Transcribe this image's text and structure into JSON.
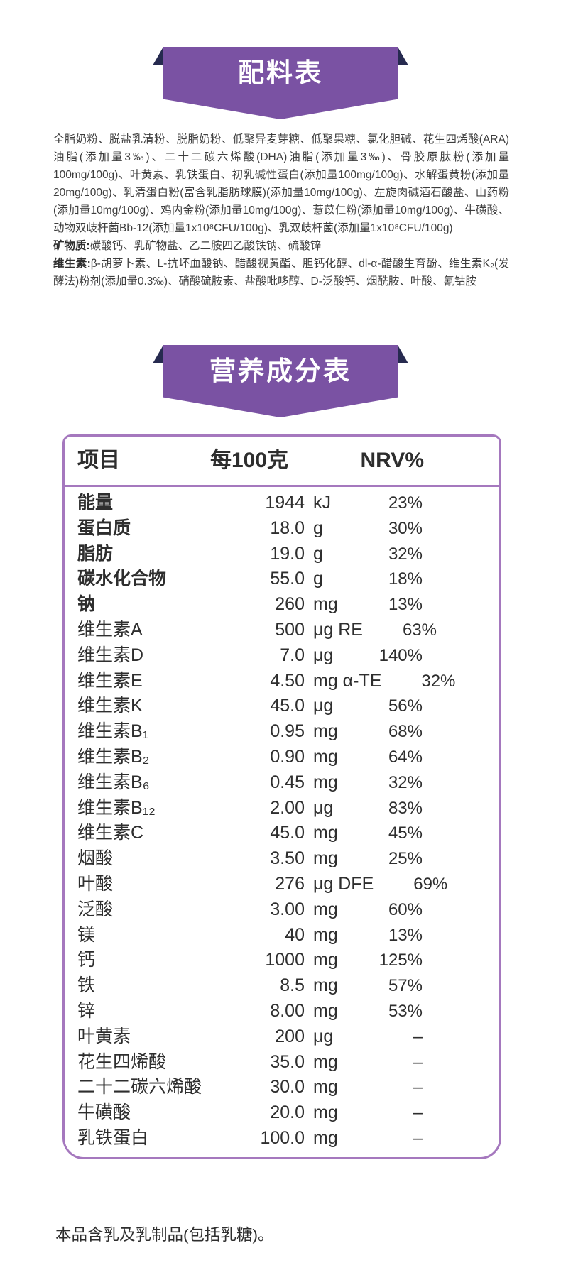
{
  "colors": {
    "banner_purple": "#7a52a3",
    "ribbon_fold_navy": "#262a4f",
    "table_border_purple": "#a578be",
    "text_dark": "#2e2e2e"
  },
  "ingredients_banner": {
    "title": "配料表"
  },
  "ingredients": {
    "main": "全脂奶粉、脱盐乳清粉、脱脂奶粉、低聚异麦芽糖、低聚果糖、氯化胆碱、花生四烯酸(ARA)油脂(添加量3‰)、二十二碳六烯酸(DHA)油脂(添加量3‰)、骨胶原肽粉(添加量100mg/100g)、叶黄素、乳铁蛋白、初乳碱性蛋白(添加量100mg/100g)、水解蛋黄粉(添加量20mg/100g)、乳清蛋白粉(富含乳脂肪球膜)(添加量10mg/100g)、左旋肉碱酒石酸盐、山药粉(添加量10mg/100g)、鸡内金粉(添加量10mg/100g)、薏苡仁粉(添加量10mg/100g)、牛磺酸、动物双歧杆菌Bb-12(添加量1x10⁸CFU/100g)、乳双歧杆菌(添加量1x10⁸CFU/100g)",
    "minerals_label": "矿物质:",
    "minerals": "碳酸钙、乳矿物盐、乙二胺四乙酸铁钠、硫酸锌",
    "vitamins_label": "维生素:",
    "vitamins": "β-胡萝卜素、L-抗坏血酸钠、醋酸视黄酯、胆钙化醇、dl-α-醋酸生育酚、维生素K₂(发酵法)粉剂(添加量0.3‰)、硝酸硫胺素、盐酸吡哆醇、D-泛酸钙、烟酰胺、叶酸、氰钴胺"
  },
  "nutrition_banner": {
    "title": "营养成分表"
  },
  "nutrition_table": {
    "headers": {
      "item": "项目",
      "per_100g": "每100克",
      "nrv": "NRV%"
    },
    "rows": [
      {
        "name": "能量",
        "num": "1944",
        "unit": "kJ",
        "nrv": "23%",
        "bold": true
      },
      {
        "name": "蛋白质",
        "num": "18.0",
        "unit": "g",
        "nrv": "30%",
        "bold": true
      },
      {
        "name": "脂肪",
        "num": "19.0",
        "unit": "g",
        "nrv": "32%",
        "bold": true
      },
      {
        "name": "碳水化合物",
        "num": "55.0",
        "unit": "g",
        "nrv": "18%",
        "bold": true
      },
      {
        "name": "钠",
        "num": "260",
        "unit": "mg",
        "nrv": "13%",
        "bold": true
      },
      {
        "name": "维生素A",
        "num": "500",
        "unit": "μg RE",
        "nrv": "63%",
        "bold": false
      },
      {
        "name": "维生素D",
        "num": "7.0",
        "unit": "μg",
        "nrv": "140%",
        "bold": false
      },
      {
        "name": "维生素E",
        "num": "4.50",
        "unit": "mg α-TE",
        "nrv": "32%",
        "bold": false
      },
      {
        "name": "维生素K",
        "num": "45.0",
        "unit": "μg",
        "nrv": "56%",
        "bold": false
      },
      {
        "name": "维生素B₁",
        "num": "0.95",
        "unit": "mg",
        "nrv": "68%",
        "bold": false
      },
      {
        "name": "维生素B₂",
        "num": "0.90",
        "unit": "mg",
        "nrv": "64%",
        "bold": false
      },
      {
        "name": "维生素B₆",
        "num": "0.45",
        "unit": "mg",
        "nrv": "32%",
        "bold": false
      },
      {
        "name": "维生素B₁₂",
        "num": "2.00",
        "unit": "μg",
        "nrv": "83%",
        "bold": false
      },
      {
        "name": "维生素C",
        "num": "45.0",
        "unit": "mg",
        "nrv": "45%",
        "bold": false
      },
      {
        "name": "烟酸",
        "num": "3.50",
        "unit": "mg",
        "nrv": "25%",
        "bold": false
      },
      {
        "name": "叶酸",
        "num": "276",
        "unit": "μg DFE",
        "nrv": "69%",
        "bold": false
      },
      {
        "name": "泛酸",
        "num": "3.00",
        "unit": "mg",
        "nrv": "60%",
        "bold": false
      },
      {
        "name": "镁",
        "num": "40",
        "unit": "mg",
        "nrv": "13%",
        "bold": false
      },
      {
        "name": "钙",
        "num": "1000",
        "unit": "mg",
        "nrv": "125%",
        "bold": false
      },
      {
        "name": "铁",
        "num": "8.5",
        "unit": "mg",
        "nrv": "57%",
        "bold": false
      },
      {
        "name": "锌",
        "num": "8.00",
        "unit": "mg",
        "nrv": "53%",
        "bold": false
      },
      {
        "name": "叶黄素",
        "num": "200",
        "unit": "μg",
        "nrv": "–",
        "bold": false
      },
      {
        "name": "花生四烯酸",
        "num": "35.0",
        "unit": "mg",
        "nrv": "–",
        "bold": false
      },
      {
        "name": "二十二碳六烯酸",
        "num": "30.0",
        "unit": "mg",
        "nrv": "–",
        "bold": false
      },
      {
        "name": "牛磺酸",
        "num": "20.0",
        "unit": "mg",
        "nrv": "–",
        "bold": false
      },
      {
        "name": "乳铁蛋白",
        "num": "100.0",
        "unit": "mg",
        "nrv": "–",
        "bold": false
      }
    ]
  },
  "footer": {
    "allergen_note": "本品含乳及乳制品(包括乳糖)。"
  }
}
